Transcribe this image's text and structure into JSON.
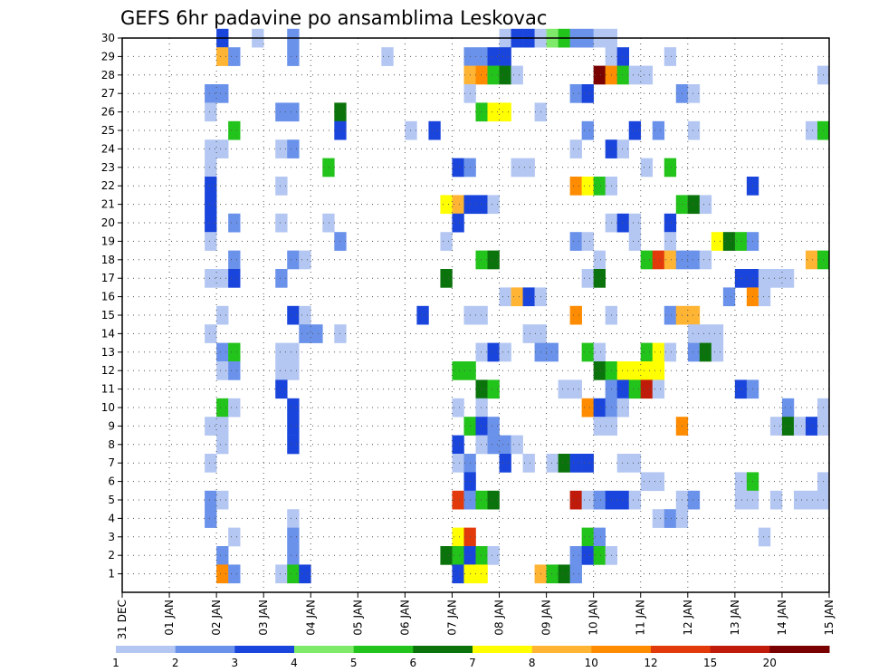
{
  "chart_data": {
    "type": "heatmap",
    "title": "GEFS 6hr padavine po ansamblima Leskovac",
    "xlabel": "",
    "ylabel": "",
    "ensemble_members": [
      1,
      2,
      3,
      4,
      5,
      6,
      7,
      8,
      9,
      10,
      11,
      12,
      13,
      14,
      15,
      16,
      17,
      18,
      19,
      20,
      21,
      22,
      23,
      24,
      25,
      26,
      27,
      28,
      29,
      30
    ],
    "x_tick_labels": [
      "31 DEC",
      "01 JAN",
      "02 JAN",
      "03 JAN",
      "04 JAN",
      "05 JAN",
      "06 JAN",
      "07 JAN",
      "08 JAN",
      "09 JAN",
      "10 JAN",
      "11 JAN",
      "12 JAN",
      "13 JAN",
      "14 JAN",
      "15 JAN"
    ],
    "x_range_days": [
      0,
      15
    ],
    "time_step_hours": 6,
    "grid": true,
    "legend_position": "bottom",
    "colorbar": {
      "labels": [
        "1",
        "2",
        "3",
        "4",
        "5",
        "6",
        "7",
        "8",
        "10",
        "12",
        "15",
        "20"
      ],
      "colors": [
        "#b4c7f2",
        "#6a92ea",
        "#1a45dc",
        "#7fe96a",
        "#22c31a",
        "#0b730b",
        "#ffff00",
        "#ffb433",
        "#ff8c00",
        "#e23a0a",
        "#c01a0a",
        "#7a0000"
      ]
    },
    "cells_note": "each cell: [day_step_index (6h step from 31 DEC 00z), member, color_index]",
    "cells": [
      [
        8,
        30,
        2
      ],
      [
        11,
        30,
        0
      ],
      [
        14,
        30,
        1
      ],
      [
        32,
        30,
        0
      ],
      [
        33,
        30,
        2
      ],
      [
        34,
        30,
        2
      ],
      [
        35,
        30,
        0
      ],
      [
        36,
        30,
        3
      ],
      [
        37,
        30,
        4
      ],
      [
        38,
        30,
        1
      ],
      [
        39,
        30,
        1
      ],
      [
        40,
        30,
        0
      ],
      [
        41,
        30,
        0
      ],
      [
        8,
        29,
        7
      ],
      [
        9,
        29,
        1
      ],
      [
        14,
        29,
        1
      ],
      [
        22,
        29,
        0
      ],
      [
        29,
        29,
        1
      ],
      [
        30,
        29,
        1
      ],
      [
        31,
        29,
        2
      ],
      [
        32,
        29,
        2
      ],
      [
        41,
        29,
        0
      ],
      [
        42,
        29,
        2
      ],
      [
        46,
        29,
        0
      ],
      [
        29,
        28,
        7
      ],
      [
        30,
        28,
        8
      ],
      [
        31,
        28,
        4
      ],
      [
        32,
        28,
        5
      ],
      [
        33,
        28,
        0
      ],
      [
        40,
        28,
        11
      ],
      [
        41,
        28,
        8
      ],
      [
        42,
        28,
        4
      ],
      [
        43,
        28,
        0
      ],
      [
        44,
        28,
        0
      ],
      [
        59,
        28,
        0
      ],
      [
        7,
        27,
        1
      ],
      [
        8,
        27,
        1
      ],
      [
        29,
        27,
        0
      ],
      [
        38,
        27,
        1
      ],
      [
        39,
        27,
        2
      ],
      [
        47,
        27,
        1
      ],
      [
        48,
        27,
        0
      ],
      [
        7,
        26,
        0
      ],
      [
        13,
        26,
        1
      ],
      [
        14,
        26,
        1
      ],
      [
        18,
        26,
        5
      ],
      [
        30,
        26,
        4
      ],
      [
        31,
        26,
        6
      ],
      [
        32,
        26,
        6
      ],
      [
        35,
        26,
        0
      ],
      [
        9,
        25,
        4
      ],
      [
        18,
        25,
        2
      ],
      [
        24,
        25,
        0
      ],
      [
        26,
        25,
        2
      ],
      [
        39,
        25,
        1
      ],
      [
        43,
        25,
        2
      ],
      [
        45,
        25,
        1
      ],
      [
        48,
        25,
        0
      ],
      [
        58,
        25,
        0
      ],
      [
        59,
        25,
        4
      ],
      [
        7,
        24,
        0
      ],
      [
        8,
        24,
        0
      ],
      [
        13,
        24,
        0
      ],
      [
        14,
        24,
        1
      ],
      [
        38,
        24,
        0
      ],
      [
        41,
        24,
        2
      ],
      [
        42,
        24,
        0
      ],
      [
        7,
        23,
        0
      ],
      [
        17,
        23,
        4
      ],
      [
        28,
        23,
        2
      ],
      [
        29,
        23,
        1
      ],
      [
        33,
        23,
        0
      ],
      [
        34,
        23,
        0
      ],
      [
        44,
        23,
        0
      ],
      [
        46,
        23,
        4
      ],
      [
        7,
        22,
        2
      ],
      [
        13,
        22,
        0
      ],
      [
        38,
        22,
        8
      ],
      [
        39,
        22,
        6
      ],
      [
        40,
        22,
        4
      ],
      [
        41,
        22,
        0
      ],
      [
        53,
        22,
        2
      ],
      [
        7,
        21,
        2
      ],
      [
        27,
        21,
        6
      ],
      [
        28,
        21,
        7
      ],
      [
        29,
        21,
        2
      ],
      [
        30,
        21,
        2
      ],
      [
        31,
        21,
        0
      ],
      [
        47,
        21,
        4
      ],
      [
        48,
        21,
        5
      ],
      [
        49,
        21,
        0
      ],
      [
        7,
        20,
        2
      ],
      [
        9,
        20,
        1
      ],
      [
        13,
        20,
        0
      ],
      [
        17,
        20,
        0
      ],
      [
        28,
        20,
        2
      ],
      [
        41,
        20,
        0
      ],
      [
        42,
        20,
        2
      ],
      [
        43,
        20,
        0
      ],
      [
        46,
        20,
        2
      ],
      [
        7,
        19,
        0
      ],
      [
        18,
        19,
        1
      ],
      [
        27,
        19,
        0
      ],
      [
        38,
        19,
        1
      ],
      [
        39,
        19,
        0
      ],
      [
        43,
        19,
        0
      ],
      [
        46,
        19,
        0
      ],
      [
        50,
        19,
        6
      ],
      [
        51,
        19,
        5
      ],
      [
        52,
        19,
        4
      ],
      [
        53,
        19,
        1
      ],
      [
        9,
        18,
        1
      ],
      [
        14,
        18,
        1
      ],
      [
        15,
        18,
        0
      ],
      [
        30,
        18,
        4
      ],
      [
        31,
        18,
        5
      ],
      [
        40,
        18,
        0
      ],
      [
        44,
        18,
        4
      ],
      [
        45,
        18,
        9
      ],
      [
        46,
        18,
        7
      ],
      [
        47,
        18,
        1
      ],
      [
        48,
        18,
        1
      ],
      [
        49,
        18,
        0
      ],
      [
        58,
        18,
        7
      ],
      [
        59,
        18,
        4
      ],
      [
        7,
        17,
        0
      ],
      [
        8,
        17,
        0
      ],
      [
        9,
        17,
        2
      ],
      [
        13,
        17,
        1
      ],
      [
        27,
        17,
        5
      ],
      [
        39,
        17,
        0
      ],
      [
        40,
        17,
        5
      ],
      [
        52,
        17,
        2
      ],
      [
        53,
        17,
        2
      ],
      [
        54,
        17,
        0
      ],
      [
        55,
        17,
        0
      ],
      [
        56,
        17,
        0
      ],
      [
        32,
        16,
        0
      ],
      [
        33,
        16,
        7
      ],
      [
        34,
        16,
        2
      ],
      [
        35,
        16,
        0
      ],
      [
        51,
        16,
        1
      ],
      [
        53,
        16,
        8
      ],
      [
        54,
        16,
        0
      ],
      [
        8,
        15,
        0
      ],
      [
        14,
        15,
        2
      ],
      [
        15,
        15,
        0
      ],
      [
        25,
        15,
        2
      ],
      [
        29,
        15,
        0
      ],
      [
        30,
        15,
        0
      ],
      [
        38,
        15,
        8
      ],
      [
        41,
        15,
        0
      ],
      [
        46,
        15,
        1
      ],
      [
        47,
        15,
        7
      ],
      [
        48,
        15,
        7
      ],
      [
        7,
        14,
        0
      ],
      [
        15,
        14,
        1
      ],
      [
        16,
        14,
        1
      ],
      [
        18,
        14,
        0
      ],
      [
        34,
        14,
        0
      ],
      [
        35,
        14,
        0
      ],
      [
        48,
        14,
        0
      ],
      [
        49,
        14,
        0
      ],
      [
        50,
        14,
        0
      ],
      [
        8,
        13,
        1
      ],
      [
        9,
        13,
        4
      ],
      [
        13,
        13,
        0
      ],
      [
        14,
        13,
        0
      ],
      [
        30,
        13,
        0
      ],
      [
        31,
        13,
        2
      ],
      [
        32,
        13,
        0
      ],
      [
        35,
        13,
        1
      ],
      [
        36,
        13,
        1
      ],
      [
        39,
        13,
        4
      ],
      [
        40,
        13,
        0
      ],
      [
        44,
        13,
        4
      ],
      [
        45,
        13,
        6
      ],
      [
        46,
        13,
        0
      ],
      [
        48,
        13,
        1
      ],
      [
        49,
        13,
        5
      ],
      [
        50,
        13,
        0
      ],
      [
        8,
        12,
        0
      ],
      [
        9,
        12,
        1
      ],
      [
        13,
        12,
        0
      ],
      [
        14,
        12,
        0
      ],
      [
        28,
        12,
        4
      ],
      [
        29,
        12,
        4
      ],
      [
        40,
        12,
        5
      ],
      [
        41,
        12,
        4
      ],
      [
        42,
        12,
        6
      ],
      [
        43,
        12,
        6
      ],
      [
        44,
        12,
        6
      ],
      [
        45,
        12,
        6
      ],
      [
        13,
        11,
        2
      ],
      [
        30,
        11,
        5
      ],
      [
        31,
        11,
        4
      ],
      [
        37,
        11,
        0
      ],
      [
        38,
        11,
        0
      ],
      [
        41,
        11,
        1
      ],
      [
        42,
        11,
        2
      ],
      [
        43,
        11,
        4
      ],
      [
        44,
        11,
        10
      ],
      [
        45,
        11,
        0
      ],
      [
        52,
        11,
        2
      ],
      [
        53,
        11,
        1
      ],
      [
        8,
        10,
        4
      ],
      [
        9,
        10,
        0
      ],
      [
        14,
        10,
        2
      ],
      [
        28,
        10,
        0
      ],
      [
        30,
        10,
        0
      ],
      [
        39,
        10,
        8
      ],
      [
        40,
        10,
        2
      ],
      [
        41,
        10,
        1
      ],
      [
        42,
        10,
        0
      ],
      [
        56,
        10,
        1
      ],
      [
        59,
        10,
        0
      ],
      [
        7,
        9,
        0
      ],
      [
        8,
        9,
        0
      ],
      [
        14,
        9,
        2
      ],
      [
        29,
        9,
        4
      ],
      [
        30,
        9,
        2
      ],
      [
        31,
        9,
        1
      ],
      [
        40,
        9,
        0
      ],
      [
        41,
        9,
        0
      ],
      [
        47,
        9,
        8
      ],
      [
        55,
        9,
        0
      ],
      [
        56,
        9,
        5
      ],
      [
        57,
        9,
        0
      ],
      [
        58,
        9,
        2
      ],
      [
        59,
        9,
        0
      ],
      [
        8,
        8,
        0
      ],
      [
        14,
        8,
        2
      ],
      [
        28,
        8,
        2
      ],
      [
        30,
        8,
        0
      ],
      [
        31,
        8,
        1
      ],
      [
        32,
        8,
        1
      ],
      [
        33,
        8,
        0
      ],
      [
        7,
        7,
        0
      ],
      [
        28,
        7,
        0
      ],
      [
        29,
        7,
        1
      ],
      [
        32,
        7,
        2
      ],
      [
        34,
        7,
        0
      ],
      [
        36,
        7,
        0
      ],
      [
        37,
        7,
        5
      ],
      [
        38,
        7,
        2
      ],
      [
        39,
        7,
        2
      ],
      [
        42,
        7,
        0
      ],
      [
        43,
        7,
        0
      ],
      [
        29,
        6,
        2
      ],
      [
        44,
        6,
        0
      ],
      [
        45,
        6,
        0
      ],
      [
        52,
        6,
        0
      ],
      [
        53,
        6,
        4
      ],
      [
        59,
        6,
        0
      ],
      [
        7,
        5,
        1
      ],
      [
        8,
        5,
        0
      ],
      [
        28,
        5,
        9
      ],
      [
        29,
        5,
        1
      ],
      [
        30,
        5,
        4
      ],
      [
        31,
        5,
        5
      ],
      [
        38,
        5,
        10
      ],
      [
        39,
        5,
        0
      ],
      [
        40,
        5,
        1
      ],
      [
        41,
        5,
        2
      ],
      [
        42,
        5,
        2
      ],
      [
        43,
        5,
        0
      ],
      [
        47,
        5,
        0
      ],
      [
        48,
        5,
        1
      ],
      [
        52,
        5,
        0
      ],
      [
        53,
        5,
        0
      ],
      [
        55,
        5,
        0
      ],
      [
        57,
        5,
        0
      ],
      [
        58,
        5,
        0
      ],
      [
        59,
        5,
        0
      ],
      [
        7,
        4,
        1
      ],
      [
        14,
        4,
        0
      ],
      [
        45,
        4,
        0
      ],
      [
        46,
        4,
        1
      ],
      [
        47,
        4,
        0
      ],
      [
        9,
        3,
        0
      ],
      [
        14,
        3,
        1
      ],
      [
        28,
        3,
        6
      ],
      [
        29,
        3,
        9
      ],
      [
        39,
        3,
        4
      ],
      [
        40,
        3,
        1
      ],
      [
        54,
        3,
        0
      ],
      [
        8,
        2,
        1
      ],
      [
        14,
        2,
        1
      ],
      [
        27,
        2,
        5
      ],
      [
        28,
        2,
        4
      ],
      [
        29,
        2,
        2
      ],
      [
        30,
        2,
        4
      ],
      [
        31,
        2,
        0
      ],
      [
        38,
        2,
        1
      ],
      [
        39,
        2,
        2
      ],
      [
        40,
        2,
        4
      ],
      [
        41,
        2,
        0
      ],
      [
        8,
        1,
        8
      ],
      [
        9,
        1,
        1
      ],
      [
        13,
        1,
        0
      ],
      [
        14,
        1,
        4
      ],
      [
        15,
        1,
        2
      ],
      [
        28,
        1,
        2
      ],
      [
        29,
        1,
        6
      ],
      [
        30,
        1,
        6
      ],
      [
        35,
        1,
        7
      ],
      [
        36,
        1,
        4
      ],
      [
        37,
        1,
        5
      ],
      [
        38,
        1,
        1
      ]
    ]
  }
}
